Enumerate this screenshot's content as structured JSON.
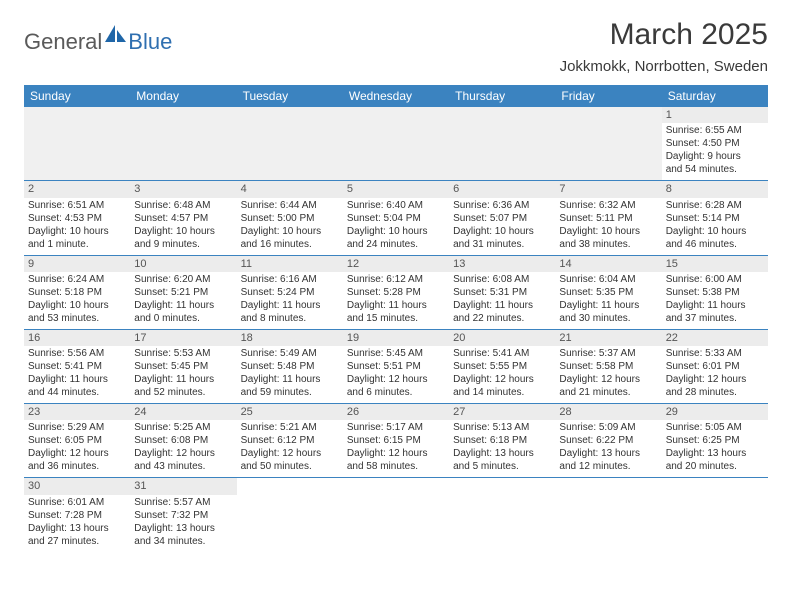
{
  "logo": {
    "text1": "General",
    "text2": "Blue"
  },
  "title": "March 2025",
  "location": "Jokkmokk, Norrbotten, Sweden",
  "colors": {
    "header_bg": "#3b83c0",
    "header_text": "#ffffff",
    "cell_border": "#3b83c0",
    "daynum_bg": "#ececec",
    "empty_bg": "#f0f0f0",
    "logo_gray": "#5a5a5a",
    "logo_blue": "#2f6fb0"
  },
  "day_headers": [
    "Sunday",
    "Monday",
    "Tuesday",
    "Wednesday",
    "Thursday",
    "Friday",
    "Saturday"
  ],
  "weeks": [
    [
      null,
      null,
      null,
      null,
      null,
      null,
      {
        "n": "1",
        "sr": "Sunrise: 6:55 AM",
        "ss": "Sunset: 4:50 PM",
        "d1": "Daylight: 9 hours",
        "d2": "and 54 minutes."
      }
    ],
    [
      {
        "n": "2",
        "sr": "Sunrise: 6:51 AM",
        "ss": "Sunset: 4:53 PM",
        "d1": "Daylight: 10 hours",
        "d2": "and 1 minute."
      },
      {
        "n": "3",
        "sr": "Sunrise: 6:48 AM",
        "ss": "Sunset: 4:57 PM",
        "d1": "Daylight: 10 hours",
        "d2": "and 9 minutes."
      },
      {
        "n": "4",
        "sr": "Sunrise: 6:44 AM",
        "ss": "Sunset: 5:00 PM",
        "d1": "Daylight: 10 hours",
        "d2": "and 16 minutes."
      },
      {
        "n": "5",
        "sr": "Sunrise: 6:40 AM",
        "ss": "Sunset: 5:04 PM",
        "d1": "Daylight: 10 hours",
        "d2": "and 24 minutes."
      },
      {
        "n": "6",
        "sr": "Sunrise: 6:36 AM",
        "ss": "Sunset: 5:07 PM",
        "d1": "Daylight: 10 hours",
        "d2": "and 31 minutes."
      },
      {
        "n": "7",
        "sr": "Sunrise: 6:32 AM",
        "ss": "Sunset: 5:11 PM",
        "d1": "Daylight: 10 hours",
        "d2": "and 38 minutes."
      },
      {
        "n": "8",
        "sr": "Sunrise: 6:28 AM",
        "ss": "Sunset: 5:14 PM",
        "d1": "Daylight: 10 hours",
        "d2": "and 46 minutes."
      }
    ],
    [
      {
        "n": "9",
        "sr": "Sunrise: 6:24 AM",
        "ss": "Sunset: 5:18 PM",
        "d1": "Daylight: 10 hours",
        "d2": "and 53 minutes."
      },
      {
        "n": "10",
        "sr": "Sunrise: 6:20 AM",
        "ss": "Sunset: 5:21 PM",
        "d1": "Daylight: 11 hours",
        "d2": "and 0 minutes."
      },
      {
        "n": "11",
        "sr": "Sunrise: 6:16 AM",
        "ss": "Sunset: 5:24 PM",
        "d1": "Daylight: 11 hours",
        "d2": "and 8 minutes."
      },
      {
        "n": "12",
        "sr": "Sunrise: 6:12 AM",
        "ss": "Sunset: 5:28 PM",
        "d1": "Daylight: 11 hours",
        "d2": "and 15 minutes."
      },
      {
        "n": "13",
        "sr": "Sunrise: 6:08 AM",
        "ss": "Sunset: 5:31 PM",
        "d1": "Daylight: 11 hours",
        "d2": "and 22 minutes."
      },
      {
        "n": "14",
        "sr": "Sunrise: 6:04 AM",
        "ss": "Sunset: 5:35 PM",
        "d1": "Daylight: 11 hours",
        "d2": "and 30 minutes."
      },
      {
        "n": "15",
        "sr": "Sunrise: 6:00 AM",
        "ss": "Sunset: 5:38 PM",
        "d1": "Daylight: 11 hours",
        "d2": "and 37 minutes."
      }
    ],
    [
      {
        "n": "16",
        "sr": "Sunrise: 5:56 AM",
        "ss": "Sunset: 5:41 PM",
        "d1": "Daylight: 11 hours",
        "d2": "and 44 minutes."
      },
      {
        "n": "17",
        "sr": "Sunrise: 5:53 AM",
        "ss": "Sunset: 5:45 PM",
        "d1": "Daylight: 11 hours",
        "d2": "and 52 minutes."
      },
      {
        "n": "18",
        "sr": "Sunrise: 5:49 AM",
        "ss": "Sunset: 5:48 PM",
        "d1": "Daylight: 11 hours",
        "d2": "and 59 minutes."
      },
      {
        "n": "19",
        "sr": "Sunrise: 5:45 AM",
        "ss": "Sunset: 5:51 PM",
        "d1": "Daylight: 12 hours",
        "d2": "and 6 minutes."
      },
      {
        "n": "20",
        "sr": "Sunrise: 5:41 AM",
        "ss": "Sunset: 5:55 PM",
        "d1": "Daylight: 12 hours",
        "d2": "and 14 minutes."
      },
      {
        "n": "21",
        "sr": "Sunrise: 5:37 AM",
        "ss": "Sunset: 5:58 PM",
        "d1": "Daylight: 12 hours",
        "d2": "and 21 minutes."
      },
      {
        "n": "22",
        "sr": "Sunrise: 5:33 AM",
        "ss": "Sunset: 6:01 PM",
        "d1": "Daylight: 12 hours",
        "d2": "and 28 minutes."
      }
    ],
    [
      {
        "n": "23",
        "sr": "Sunrise: 5:29 AM",
        "ss": "Sunset: 6:05 PM",
        "d1": "Daylight: 12 hours",
        "d2": "and 36 minutes."
      },
      {
        "n": "24",
        "sr": "Sunrise: 5:25 AM",
        "ss": "Sunset: 6:08 PM",
        "d1": "Daylight: 12 hours",
        "d2": "and 43 minutes."
      },
      {
        "n": "25",
        "sr": "Sunrise: 5:21 AM",
        "ss": "Sunset: 6:12 PM",
        "d1": "Daylight: 12 hours",
        "d2": "and 50 minutes."
      },
      {
        "n": "26",
        "sr": "Sunrise: 5:17 AM",
        "ss": "Sunset: 6:15 PM",
        "d1": "Daylight: 12 hours",
        "d2": "and 58 minutes."
      },
      {
        "n": "27",
        "sr": "Sunrise: 5:13 AM",
        "ss": "Sunset: 6:18 PM",
        "d1": "Daylight: 13 hours",
        "d2": "and 5 minutes."
      },
      {
        "n": "28",
        "sr": "Sunrise: 5:09 AM",
        "ss": "Sunset: 6:22 PM",
        "d1": "Daylight: 13 hours",
        "d2": "and 12 minutes."
      },
      {
        "n": "29",
        "sr": "Sunrise: 5:05 AM",
        "ss": "Sunset: 6:25 PM",
        "d1": "Daylight: 13 hours",
        "d2": "and 20 minutes."
      }
    ],
    [
      {
        "n": "30",
        "sr": "Sunrise: 6:01 AM",
        "ss": "Sunset: 7:28 PM",
        "d1": "Daylight: 13 hours",
        "d2": "and 27 minutes."
      },
      {
        "n": "31",
        "sr": "Sunrise: 5:57 AM",
        "ss": "Sunset: 7:32 PM",
        "d1": "Daylight: 13 hours",
        "d2": "and 34 minutes."
      },
      null,
      null,
      null,
      null,
      null
    ]
  ]
}
